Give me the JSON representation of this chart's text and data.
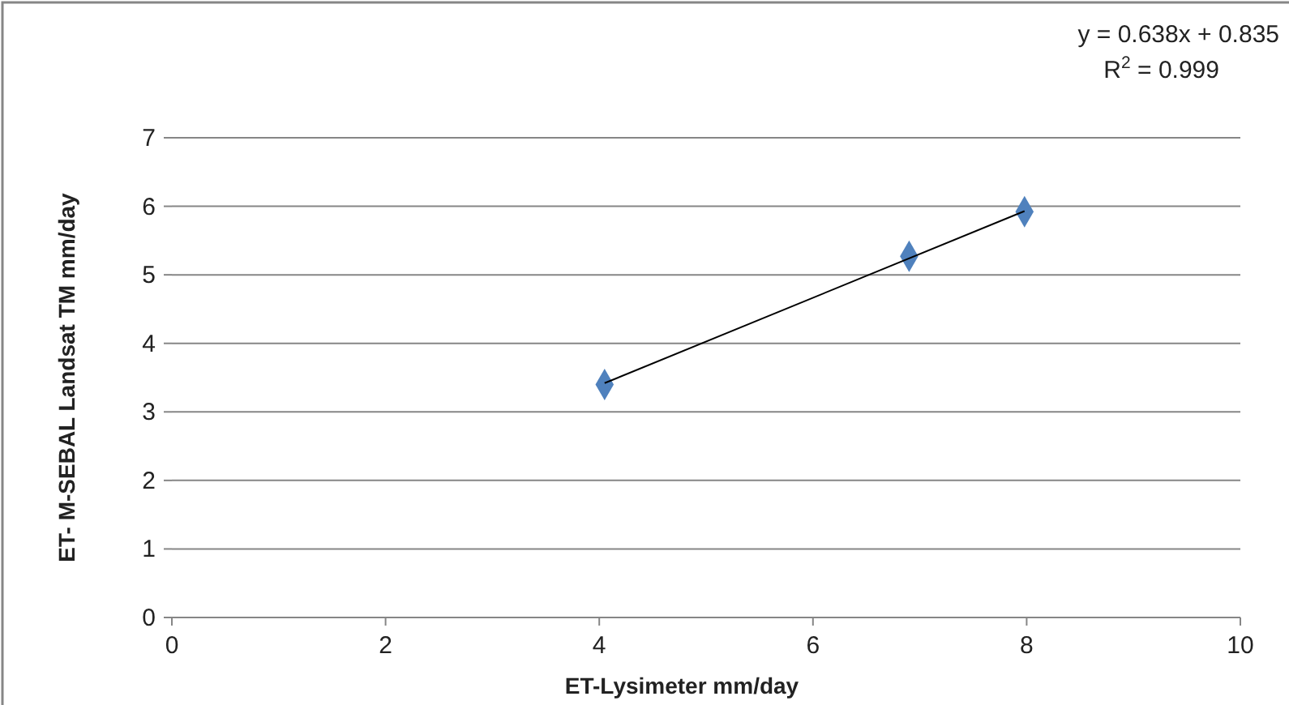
{
  "chart_data": {
    "type": "scatter",
    "xlabel": "ET-Lysimeter mm/day",
    "ylabel": "ET- M-SEBAL Landsat TM  mm/day",
    "xlim": [
      0,
      10
    ],
    "xticks": [
      0,
      2,
      4,
      6,
      8,
      10
    ],
    "ylim": [
      0,
      7
    ],
    "yticks": [
      0,
      1,
      2,
      3,
      4,
      5,
      6,
      7
    ],
    "grid": "y",
    "marker": "diamond",
    "series": [
      {
        "color": "#4f81bd",
        "x": [
          4.05,
          6.9,
          7.98
        ],
        "values": [
          3.4,
          5.27,
          5.92
        ]
      },
      {
        "type": "line",
        "color": "#000000",
        "x": [
          4.05,
          7.98
        ],
        "values": [
          3.42,
          5.93
        ],
        "line_style": "solid",
        "marker": "none"
      }
    ],
    "annotations": [
      "y = 0.638x + 0.835",
      "R$^{2}$ = 0.999"
    ]
  }
}
